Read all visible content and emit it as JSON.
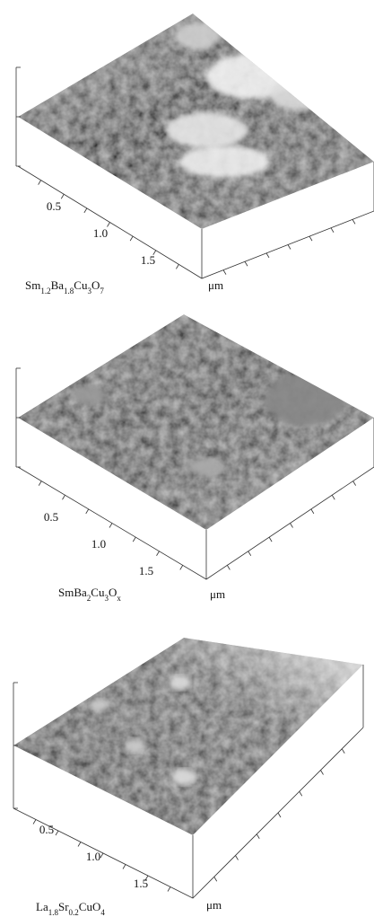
{
  "panels": [
    {
      "label": [
        {
          "text": "Sm"
        },
        {
          "sub": "1.2"
        },
        {
          "text": "Ba"
        },
        {
          "sub": "1.8"
        },
        {
          "text": "Cu"
        },
        {
          "sub": "3"
        },
        {
          "text": "O"
        },
        {
          "sub": "7"
        }
      ],
      "ticks": [
        "0.5",
        "1.0",
        "1.5"
      ],
      "unit": "μm"
    },
    {
      "label": [
        {
          "text": "SmBa"
        },
        {
          "sub": "2"
        },
        {
          "text": "Cu"
        },
        {
          "sub": "3"
        },
        {
          "text": "O"
        },
        {
          "sub": "x"
        }
      ],
      "ticks": [
        "0.5",
        "1.0",
        "1.5"
      ],
      "unit": "μm"
    },
    {
      "label": [
        {
          "text": "La"
        },
        {
          "sub": "1.8"
        },
        {
          "text": "Sr"
        },
        {
          "sub": "0.2"
        },
        {
          "text": "CuO"
        },
        {
          "sub": "4"
        }
      ],
      "ticks": [
        "0.5",
        "1.0",
        "1.5"
      ],
      "unit": "μm"
    }
  ]
}
